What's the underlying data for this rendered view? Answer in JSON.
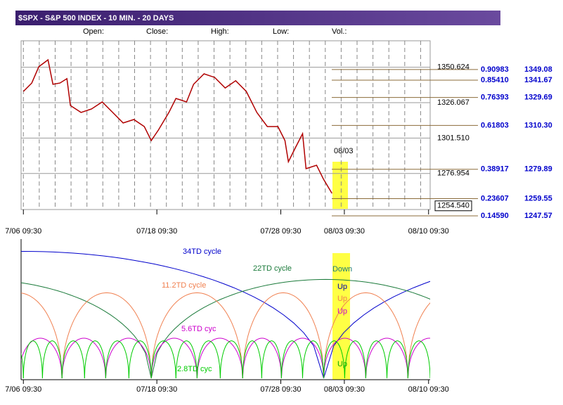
{
  "chart_data": {
    "type": "line",
    "title": "$SPX - S&P 500 INDEX - 10 MIN. - 20 DAYS",
    "column_labels": [
      "Open:",
      "Close:",
      "High:",
      "Low:",
      "Vol.:"
    ],
    "price": {
      "color": "#b00000",
      "x": [
        0,
        0.53,
        0.97,
        1.55,
        1.86,
        2.3,
        2.74,
        2.96,
        3.63,
        4.29,
        4.96,
        5.62,
        6.28,
        6.95,
        7.61,
        8.05,
        8.5,
        9.16,
        9.6,
        10.27,
        10.71,
        11.37,
        12.04,
        12.7,
        13.36,
        14.03,
        14.69,
        15.35,
        16.02,
        16.46,
        16.68,
        17.12,
        17.57,
        17.79,
        18.45,
        18.89,
        19.42
      ],
      "values": [
        1333.9,
        1339.7,
        1351,
        1355.8,
        1338.8,
        1339.7,
        1342.7,
        1324.1,
        1319.3,
        1321.7,
        1326.6,
        1319.3,
        1312,
        1314.4,
        1309.5,
        1299.8,
        1307.1,
        1319.3,
        1329,
        1326.6,
        1338.8,
        1346.1,
        1343.6,
        1336.3,
        1341.3,
        1333.9,
        1319.3,
        1309.5,
        1309.5,
        1299.8,
        1285.1,
        1294.9,
        1304.6,
        1280.3,
        1282.7,
        1273,
        1263.2
      ]
    },
    "xlim": [
      -0.1,
      25.6
    ],
    "xticks": [
      {
        "value": 0,
        "label": "7/06 09:30"
      },
      {
        "value": 8.4,
        "label": "07/18 09:30"
      },
      {
        "value": 16.2,
        "label": "07/28 09:30"
      },
      {
        "value": 20.2,
        "label": "08/03 09:30"
      },
      {
        "value": 25.5,
        "label": "08/10 09:30"
      }
    ],
    "ylim": [
      1251,
      1369
    ],
    "yticks": [
      1350.624,
      1326.067,
      {
        "value": 1301.51,
        "label": "1301.510"
      },
      1276.954
    ],
    "grid": true,
    "annotation": "08/03",
    "last_price": {
      "value": 1254.54,
      "label": "1254.540"
    },
    "fib_levels": {
      "color": "#8b6b3a",
      "ratio_labels": [
        "0.90983",
        "0.85410",
        "0.76393",
        "0.61803",
        "0.38917",
        "0.23607",
        "0.14590"
      ],
      "values": [
        1349.08,
        1341.67,
        1329.69,
        1310.3,
        1279.89,
        1259.55,
        1247.57
      ],
      "value_labels": [
        "1349.08",
        "1341.67",
        "1329.69",
        "1310.30",
        "1279.89",
        "1259.55",
        "1247.57"
      ]
    },
    "cycles": {
      "ylim": [
        0,
        100
      ],
      "series": [
        {
          "name": "34TD cycle",
          "color": "#0000cc",
          "lows": [
            -18.9,
            18.9,
            56.7
          ],
          "peak": 95
        },
        {
          "name": "22TD cycle",
          "color": "#1a7a3a",
          "lows": [
            -14,
            8.05,
            30
          ],
          "peak": 74
        },
        {
          "name": "11.2TD cycle",
          "color": "#f08050",
          "lows": [
            -3.1,
            2.43,
            8.05,
            13.8,
            18.9,
            24.2,
            29.5
          ],
          "peak": 64
        },
        {
          "name": "5.6TD cyc",
          "color": "#cc00cc",
          "lows": [
            -0.3,
            2.43,
            5.18,
            8.05,
            10.93,
            13.8,
            16.24,
            18.9,
            21.55,
            24.2,
            26.9
          ],
          "peak": 30
        },
        {
          "name": "2.8TD cyc",
          "color": "#00cc00",
          "lows": [
            -1.2,
            0,
            1.2,
            2.43,
            3.85,
            5.18,
            6.64,
            8.05,
            9.6,
            10.93,
            12.39,
            13.8,
            15.0,
            16.24,
            17.57,
            18.9,
            20.22,
            21.55,
            22.88,
            24.2,
            25.6
          ],
          "peak": 28
        }
      ],
      "signals": [
        {
          "label": "Down",
          "color": "#1a7a7a"
        },
        {
          "label": "Up",
          "color": "#0000aa"
        },
        {
          "label": "Up",
          "color": "#f08050"
        },
        {
          "label": "Up",
          "color": "#cc00cc"
        },
        {
          "label": "Up",
          "color": "#00aa00"
        }
      ]
    }
  }
}
